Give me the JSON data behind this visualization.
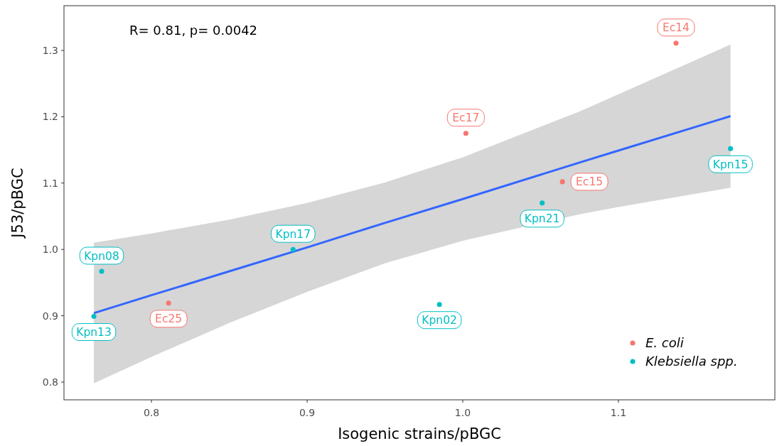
{
  "chart_data": {
    "type": "scatter",
    "xlabel": "Isogenic strains/pBGC",
    "ylabel": "J53/pBGC",
    "xlim": [
      0.7438,
      1.2005
    ],
    "ylim": [
      0.7732,
      1.3675
    ],
    "xticks": [
      0.8,
      0.9,
      {
        "value": 1,
        "label": "1.0"
      },
      1.1
    ],
    "yticks": [
      0.8,
      0.9,
      {
        "value": 1,
        "label": "1.0"
      },
      1.1,
      1.2,
      1.3
    ],
    "grid": false,
    "legend": "bottom right",
    "marker": "circle",
    "series": [
      {
        "type": "line",
        "marker": "none",
        "color": "#3366ff",
        "x": [
          0.763,
          0.8,
          0.85,
          0.9,
          0.95,
          1.0,
          1.075,
          1.1,
          1.172
        ],
        "values": [
          0.904,
          0.931,
          0.967,
          1.003,
          1.04,
          1.076,
          1.131,
          1.149,
          1.201
        ],
        "lower": [
          0.798,
          0.838,
          0.889,
          0.936,
          0.979,
          1.013,
          1.053,
          1.064,
          1.093
        ],
        "upper": [
          1.01,
          1.024,
          1.045,
          1.07,
          1.101,
          1.139,
          1.208,
          1.234,
          1.309
        ]
      },
      {
        "name": "E. coli",
        "color": "#f8766d",
        "x": [
          1.137,
          1.002,
          1.064,
          0.811
        ],
        "values": [
          1.311,
          1.175,
          1.102,
          0.919
        ]
      },
      {
        "name": "Klebsiella spp.",
        "color": "#00bfc4",
        "x": [
          1.172,
          1.051,
          0.891,
          0.768,
          0.763,
          0.985
        ],
        "values": [
          1.152,
          1.07,
          1.0,
          0.967,
          0.899,
          0.917
        ]
      }
    ],
    "annotations": [
      "R= 0.81, p= 0.0042",
      {
        "text": "Ec14",
        "x": 1.137,
        "y": 1.311
      },
      {
        "text": "Ec17",
        "x": 1.002,
        "y": 1.175
      },
      {
        "text": "Ec15",
        "x": 1.064,
        "y": 1.102
      },
      {
        "text": "Ec25",
        "x": 0.811,
        "y": 0.919
      },
      {
        "text": "Kpn15",
        "x": 1.172,
        "y": 1.152
      },
      {
        "text": "Kpn21",
        "x": 1.051,
        "y": 1.07
      },
      {
        "text": "Kpn17",
        "x": 0.891,
        "y": 1.0
      },
      {
        "text": "Kpn08",
        "x": 0.768,
        "y": 0.967
      },
      {
        "text": "Kpn13",
        "x": 0.763,
        "y": 0.899
      },
      {
        "text": "Kpn02",
        "x": 0.985,
        "y": 0.917
      }
    ]
  }
}
